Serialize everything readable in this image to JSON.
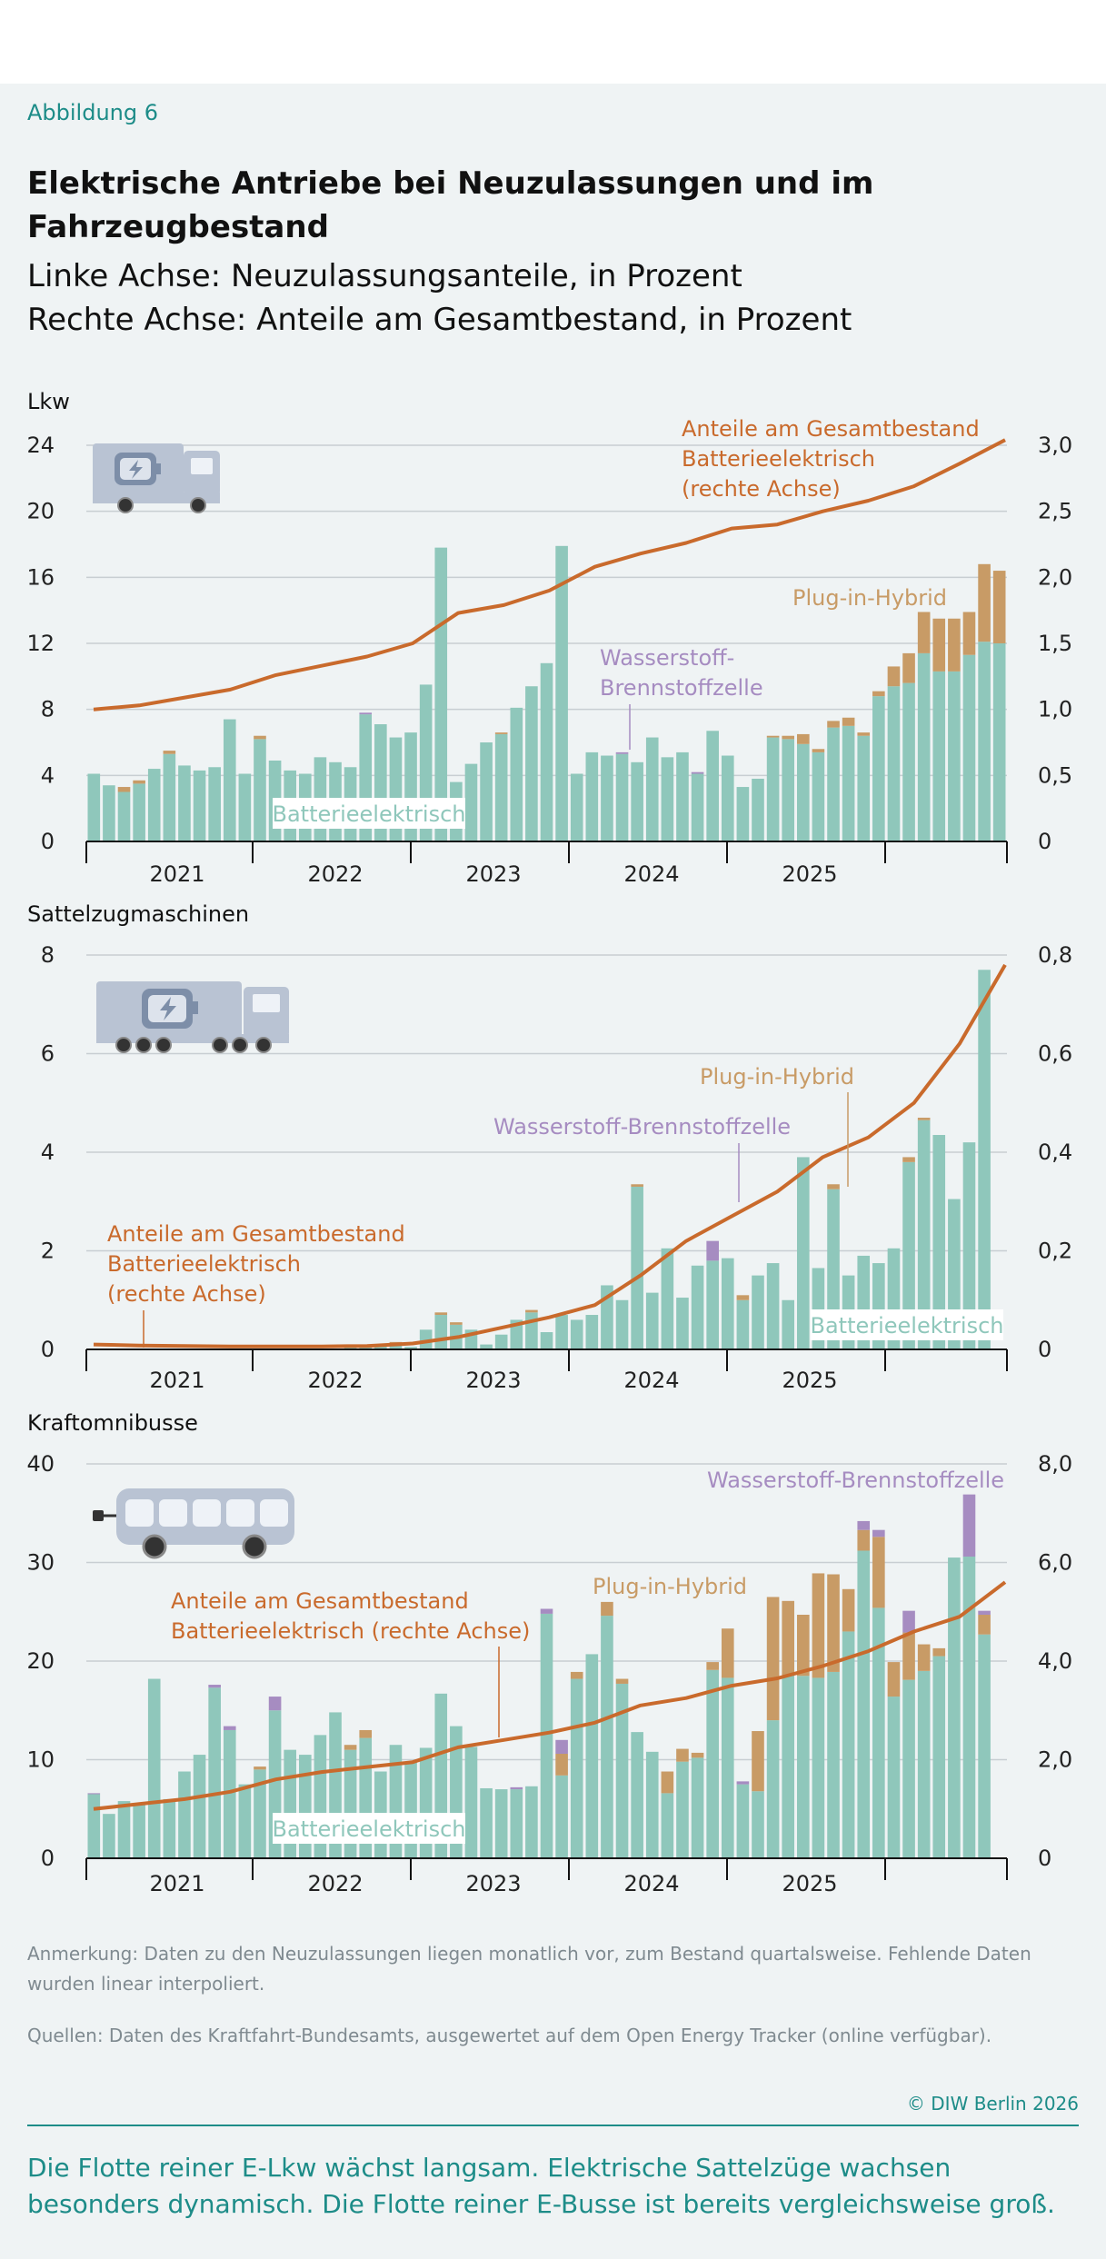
{
  "figure_label": "Abbildung 6",
  "title": "Elektrische Antriebe bei Neuzulassungen und im Fahrzeugbestand",
  "subtitle_line1": "Linke Achse: Neuzulassungsanteile, in Prozent",
  "subtitle_line2": "Rechte Achse: Anteile am Gesamtbestand, in Prozent",
  "colors": {
    "bev": "#8fc7bb",
    "phev": "#c89b66",
    "fcev": "#a68cc1",
    "line": "#c96a2c",
    "axis": "#111111",
    "grid": "#c8ced2",
    "teal": "#1d8c88",
    "icon": "#b9c3d3"
  },
  "chart_data": [
    {
      "type": "bar",
      "section_title": "Lkw",
      "icon": "truck-icon",
      "x_labels": [
        "2021",
        "2022",
        "2023",
        "2024",
        "2025"
      ],
      "left_axis": {
        "ylim": [
          0,
          24
        ],
        "ticks": [
          0,
          4,
          8,
          12,
          16,
          20,
          24
        ],
        "tick_labels": [
          "0",
          "4",
          "8",
          "12",
          "16",
          "20",
          "24"
        ]
      },
      "right_axis": {
        "ylim": [
          0,
          3.0
        ],
        "ticks": [
          0,
          0.5,
          1.0,
          1.5,
          2.0,
          2.5,
          3.0
        ],
        "tick_labels": [
          "0",
          "0,5",
          "1,0",
          "1,5",
          "2,0",
          "2,5",
          "3,0"
        ]
      },
      "series": [
        {
          "name": "Batterieelektrisch",
          "values": [
            4.1,
            3.4,
            3.0,
            3.5,
            4.4,
            5.3,
            4.6,
            4.3,
            4.5,
            7.4,
            4.1,
            6.2,
            4.9,
            4.3,
            4.1,
            5.1,
            4.8,
            4.5,
            7.7,
            7.1,
            6.3,
            6.6,
            9.5,
            17.8,
            3.6,
            4.7,
            6.0,
            6.5,
            8.1,
            9.4,
            10.8,
            17.9,
            4.1,
            5.4,
            5.2,
            5.3,
            4.8,
            6.3,
            5.1,
            5.4,
            4.1,
            6.7,
            5.2,
            3.3,
            3.8,
            6.3,
            6.2,
            5.9,
            5.4,
            6.9,
            7.0,
            6.4,
            8.8,
            9.4,
            9.6,
            11.4,
            10.3,
            10.3,
            11.3,
            12.1,
            12.0
          ]
        },
        {
          "name": "Plug-in-Hybrid",
          "values": [
            0,
            0,
            0.3,
            0.2,
            0,
            0.2,
            0,
            0,
            0,
            0,
            0,
            0.2,
            0,
            0,
            0,
            0,
            0,
            0,
            0,
            0,
            0,
            0,
            0,
            0,
            0,
            0,
            0,
            0.1,
            0,
            0,
            0,
            0,
            0,
            0,
            0,
            0,
            0,
            0,
            0,
            0,
            0,
            0,
            0,
            0,
            0,
            0.1,
            0.2,
            0.6,
            0.2,
            0.4,
            0.5,
            0.2,
            0.3,
            1.2,
            1.8,
            2.5,
            3.2,
            3.2,
            2.6,
            4.7,
            4.4
          ]
        },
        {
          "name": "Wasserstoff-Brennstoffzelle",
          "values": [
            0,
            0,
            0,
            0,
            0,
            0,
            0,
            0,
            0,
            0,
            0,
            0,
            0,
            0,
            0,
            0,
            0,
            0,
            0.1,
            0,
            0,
            0,
            0,
            0,
            0,
            0,
            0,
            0,
            0,
            0,
            0,
            0,
            0,
            0,
            0,
            0.1,
            0,
            0,
            0,
            0,
            0.1,
            0,
            0,
            0,
            0,
            0,
            0,
            0,
            0,
            0,
            0,
            0,
            0,
            0,
            0,
            0,
            0,
            0,
            0,
            0,
            0
          ]
        }
      ],
      "line": {
        "name": "Anteile am Gesamtbestand Batterieelektrisch (rechte Achse)",
        "quarter_values": [
          1.0,
          1.03,
          1.09,
          1.15,
          1.26,
          1.33,
          1.4,
          1.5,
          1.73,
          1.79,
          1.9,
          2.08,
          2.18,
          2.26,
          2.37,
          2.4,
          2.5,
          2.58,
          2.69,
          2.86,
          3.04
        ]
      },
      "labels": {
        "line_1": "Anteile am Gesamtbestand",
        "line_2": "Batterieelektrisch",
        "line_3": "(rechte Achse)",
        "bev": "Batterieelektrisch",
        "phev": "Plug-in-Hybrid",
        "fcev_1": "Wasserstoff-",
        "fcev_2": "Brennstoffzelle"
      }
    },
    {
      "type": "bar",
      "section_title": "Sattelzugmaschinen",
      "icon": "tractor-unit-icon",
      "x_labels": [
        "2021",
        "2022",
        "2023",
        "2024",
        "2025"
      ],
      "left_axis": {
        "ylim": [
          0,
          8
        ],
        "ticks": [
          0,
          2,
          4,
          6,
          8
        ],
        "tick_labels": [
          "0",
          "2",
          "4",
          "6",
          "8"
        ]
      },
      "right_axis": {
        "ylim": [
          0,
          0.8
        ],
        "ticks": [
          0,
          0.2,
          0.4,
          0.6,
          0.8
        ],
        "tick_labels": [
          "0",
          "0,2",
          "0,4",
          "0,6",
          "0,8"
        ]
      },
      "series": [
        {
          "name": "Batterieelektrisch",
          "values": [
            0,
            0,
            0,
            0,
            0,
            0,
            0,
            0,
            0,
            0,
            0,
            0,
            0,
            0,
            0,
            0,
            0,
            0.05,
            0.1,
            0.1,
            0.1,
            0.05,
            0.4,
            0.7,
            0.5,
            0.4,
            0.1,
            0.3,
            0.6,
            0.75,
            0.35,
            0.7,
            0.6,
            0.7,
            1.3,
            1.0,
            3.3,
            1.15,
            2.05,
            1.05,
            1.7,
            1.8,
            1.85,
            1.0,
            1.5,
            1.75,
            1.0,
            3.9,
            1.65,
            3.25,
            1.5,
            1.9,
            1.75,
            2.05,
            3.8,
            4.65,
            4.35,
            3.05,
            4.2,
            7.7,
            0
          ]
        },
        {
          "name": "Plug-in-Hybrid",
          "values": [
            0,
            0,
            0,
            0,
            0,
            0,
            0,
            0,
            0,
            0,
            0,
            0,
            0,
            0,
            0,
            0,
            0,
            0,
            0,
            0,
            0.05,
            0,
            0,
            0.05,
            0.05,
            0,
            0,
            0,
            0,
            0.05,
            0,
            0,
            0,
            0,
            0,
            0,
            0.05,
            0,
            0,
            0,
            0,
            0,
            0,
            0.1,
            0,
            0,
            0,
            0,
            0,
            0.1,
            0,
            0,
            0,
            0,
            0.1,
            0.05,
            0,
            0,
            0,
            0,
            0
          ]
        },
        {
          "name": "Wasserstoff-Brennstoffzelle",
          "values": [
            0,
            0,
            0,
            0,
            0,
            0,
            0,
            0,
            0,
            0,
            0,
            0,
            0,
            0,
            0,
            0,
            0,
            0,
            0,
            0,
            0,
            0,
            0,
            0,
            0,
            0,
            0,
            0,
            0,
            0,
            0,
            0,
            0,
            0,
            0,
            0,
            0,
            0,
            0,
            0,
            0,
            0.4,
            0,
            0,
            0,
            0,
            0,
            0,
            0,
            0,
            0,
            0,
            0,
            0,
            0,
            0,
            0,
            0,
            0,
            0,
            0
          ]
        }
      ],
      "line": {
        "name": "Anteile am Gesamtbestand Batterieelektrisch (rechte Achse)",
        "quarter_values": [
          0.01,
          0.008,
          0.007,
          0.006,
          0.006,
          0.006,
          0.007,
          0.012,
          0.025,
          0.045,
          0.065,
          0.09,
          0.15,
          0.22,
          0.27,
          0.32,
          0.39,
          0.43,
          0.5,
          0.62,
          0.78
        ]
      },
      "labels": {
        "line_1": "Anteile am Gesamtbestand",
        "line_2": "Batterieelektrisch",
        "line_3": "(rechte Achse)",
        "bev": "Batterieelektrisch",
        "phev": "Plug-in-Hybrid",
        "fcev": "Wasserstoff-Brennstoffzelle"
      }
    },
    {
      "type": "bar",
      "section_title": "Kraftomnibusse",
      "icon": "bus-icon",
      "x_labels": [
        "2021",
        "2022",
        "2023",
        "2024",
        "2025"
      ],
      "left_axis": {
        "ylim": [
          0,
          40
        ],
        "ticks": [
          0,
          10,
          20,
          30,
          40
        ],
        "tick_labels": [
          "0",
          "10",
          "20",
          "30",
          "40"
        ]
      },
      "right_axis": {
        "ylim": [
          0,
          8.0
        ],
        "ticks": [
          0,
          2.0,
          4.0,
          6.0,
          8.0
        ],
        "tick_labels": [
          "0",
          "2,0",
          "4,0",
          "6,0",
          "8,0"
        ]
      },
      "series": [
        {
          "name": "Batterieelektrisch",
          "values": [
            6.5,
            4.5,
            5.8,
            5.5,
            18.2,
            6.0,
            8.8,
            10.5,
            17.3,
            13.0,
            7.5,
            9.0,
            15.0,
            11.0,
            10.5,
            12.5,
            14.8,
            11.0,
            12.2,
            8.8,
            11.5,
            9.8,
            11.2,
            16.7,
            13.4,
            11.3,
            7.1,
            7.0,
            7.0,
            7.3,
            24.8,
            8.4,
            18.2,
            20.7,
            24.6,
            17.7,
            12.8,
            10.8,
            6.6,
            9.8,
            10.2,
            19.1,
            18.3,
            7.5,
            6.8,
            14.0,
            18.5,
            18.5,
            18.3,
            18.9,
            23.0,
            31.2,
            25.4,
            16.4,
            18.1,
            19.0,
            20.5,
            30.5,
            30.6,
            22.7,
            0
          ]
        },
        {
          "name": "Plug-in-Hybrid",
          "values": [
            0,
            0,
            0,
            0,
            0,
            0,
            0,
            0,
            0,
            0,
            0,
            0.3,
            0,
            0,
            0,
            0,
            0,
            0.5,
            0.8,
            0,
            0,
            0,
            0,
            0,
            0,
            0,
            0,
            0,
            0,
            0,
            0,
            2.2,
            0.7,
            0,
            1.4,
            0.5,
            0,
            0,
            2.2,
            1.3,
            0.5,
            0.8,
            5.0,
            0,
            6.1,
            12.5,
            7.6,
            6.2,
            10.6,
            9.9,
            4.3,
            2.1,
            7.2,
            3.5,
            4.8,
            2.7,
            0.8,
            0,
            0,
            2.0,
            0
          ]
        },
        {
          "name": "Wasserstoff-Brennstoffzelle",
          "values": [
            0.1,
            0,
            0,
            0,
            0,
            0,
            0,
            0,
            0.3,
            0.4,
            0,
            0,
            1.4,
            0,
            0,
            0,
            0,
            0,
            0,
            0,
            0,
            0,
            0,
            0,
            0,
            0,
            0,
            0,
            0.2,
            0,
            0.5,
            1.4,
            0,
            0,
            0,
            0,
            0,
            0,
            0,
            0,
            0,
            0,
            0,
            0.3,
            0,
            0,
            0,
            0,
            0,
            0,
            0,
            0.9,
            0.7,
            0,
            2.2,
            0,
            0,
            0,
            6.3,
            0.4,
            0
          ]
        }
      ],
      "line": {
        "name": "Anteile am Gesamtbestand Batterieelektrisch (rechte Achse)",
        "quarter_values": [
          1.0,
          1.1,
          1.2,
          1.35,
          1.6,
          1.75,
          1.85,
          1.95,
          2.25,
          2.4,
          2.55,
          2.75,
          3.1,
          3.25,
          3.5,
          3.65,
          3.9,
          4.2,
          4.6,
          4.9,
          5.6
        ]
      },
      "labels": {
        "line_1": "Anteile am Gesamtbestand",
        "line_2": "Batterieelektrisch (rechte Achse)",
        "bev": "Batterieelektrisch",
        "phev": "Plug-in-Hybrid",
        "fcev": "Wasserstoff-Brennstoffzelle"
      }
    }
  ],
  "note": "Anmerkung: Daten zu den Neuzulassungen liegen monatlich vor, zum Bestand quartalsweise. Fehlende Daten wurden linear interpoliert.",
  "sources": "Quellen: Daten des Kraftfahrt-Bundesamts, ausgewertet auf dem Open Energy Tracker (online verfügbar).",
  "copyright": "© DIW Berlin 2026",
  "takeaway": "Die Flotte reiner E-Lkw wächst langsam. Elektrische Sattelzüge wachsen besonders dynamisch. Die Flotte reiner E-Busse ist bereits vergleichsweise groß."
}
